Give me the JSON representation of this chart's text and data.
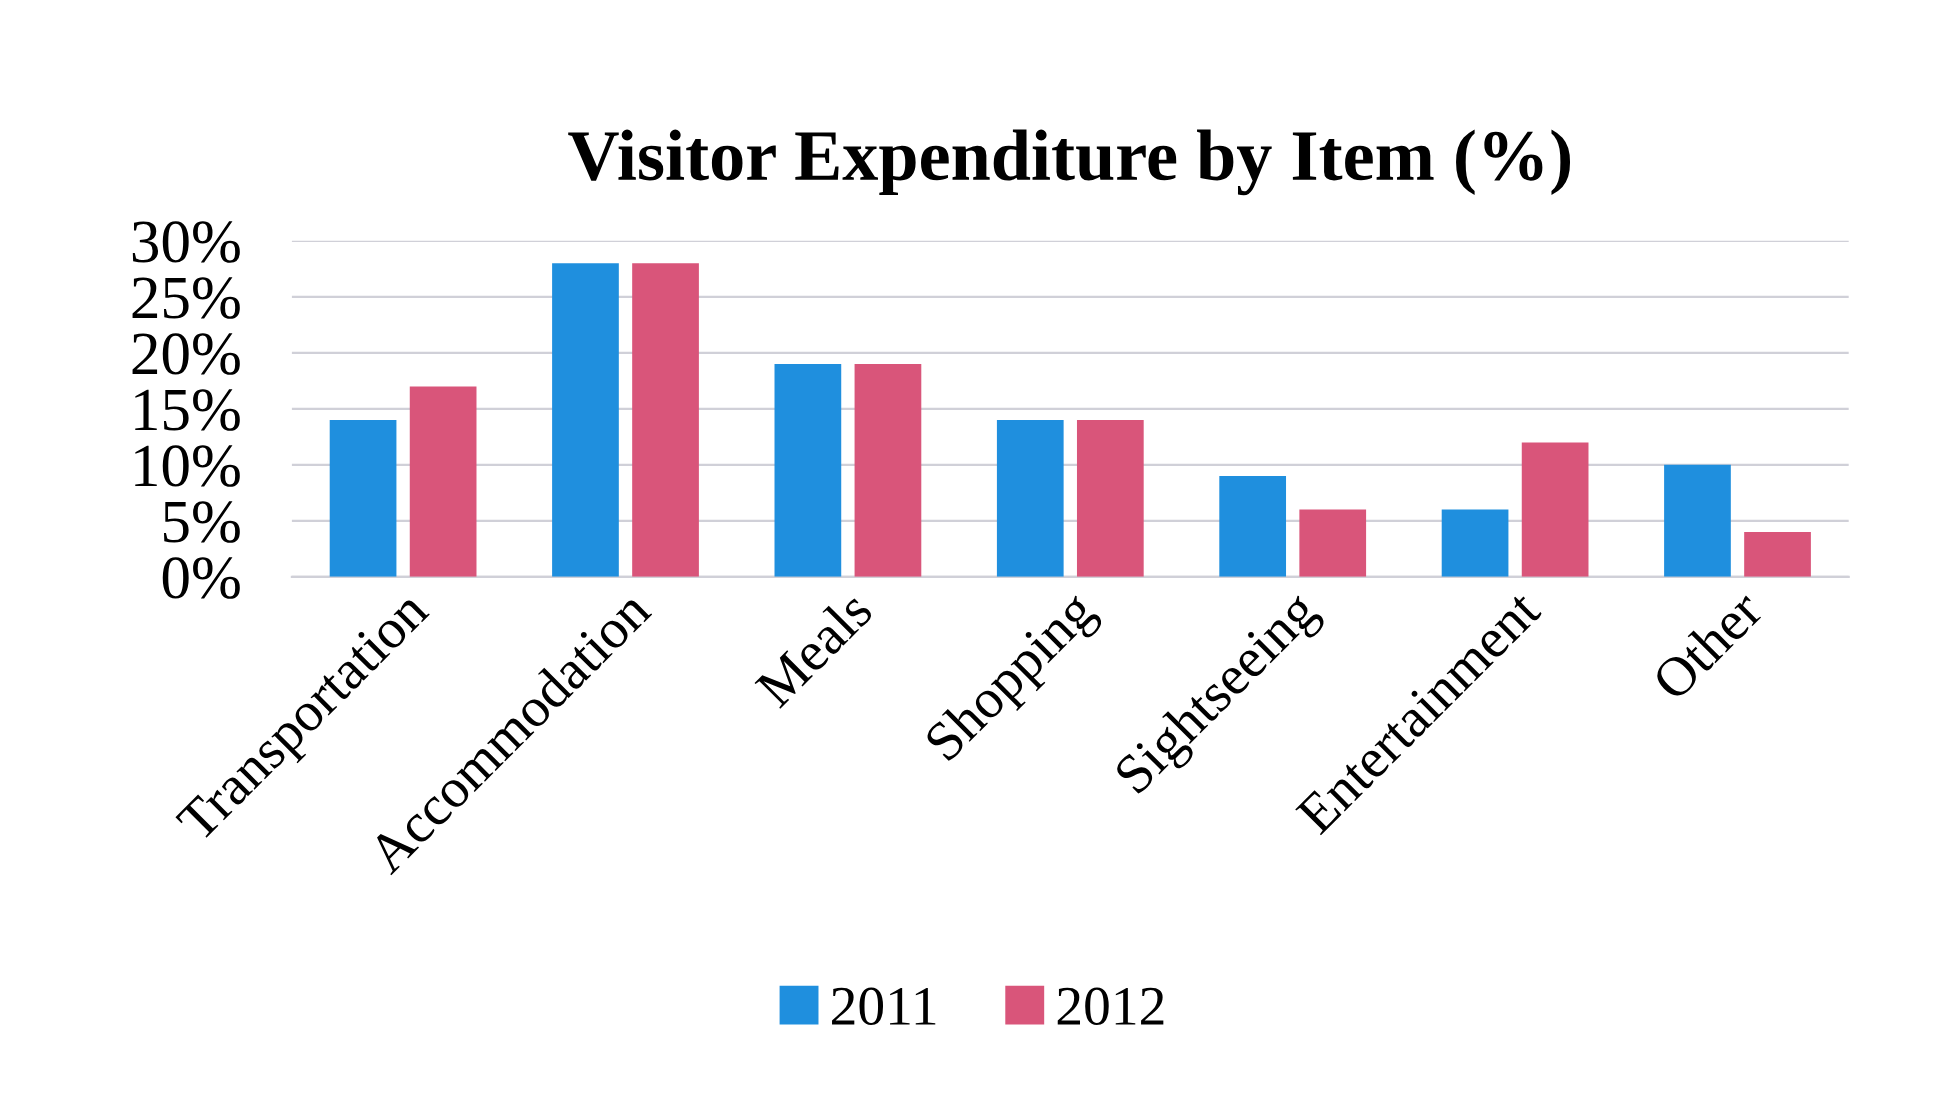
{
  "chart_data": {
    "type": "bar",
    "title": "Visitor Expenditure by Item (%)",
    "categories": [
      "Transportation",
      "Accommodation",
      "Meals",
      "Shopping",
      "Sightseeing",
      "Entertainment",
      "Other"
    ],
    "series": [
      {
        "name": "2011",
        "color": "#1f8fde",
        "values": [
          14,
          28,
          19,
          14,
          9,
          6,
          10
        ]
      },
      {
        "name": "2012",
        "color": "#d9557a",
        "values": [
          17,
          28,
          19,
          14,
          6,
          12,
          4
        ]
      }
    ],
    "ylim": [
      0,
      30
    ],
    "yticks": [
      {
        "value": 0,
        "label": "0%"
      },
      {
        "value": 5,
        "label": "5%"
      },
      {
        "value": 10,
        "label": "10%"
      },
      {
        "value": 15,
        "label": "15%"
      },
      {
        "value": 20,
        "label": "20%"
      },
      {
        "value": 25,
        "label": "25%"
      },
      {
        "value": 30,
        "label": "30%"
      }
    ],
    "grid": "y",
    "legend": "bottom"
  }
}
